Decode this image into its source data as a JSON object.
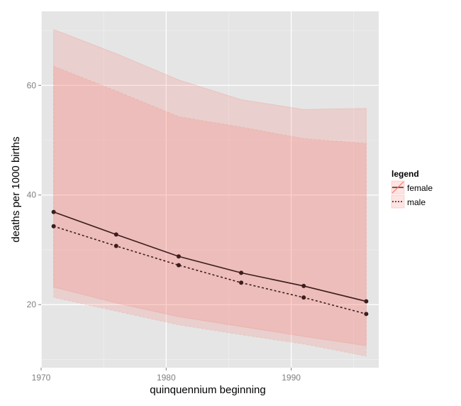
{
  "chart_data": {
    "type": "line",
    "xlabel": "quinquennium beginning",
    "ylabel": "deaths per 1000 births",
    "xlim": [
      1970,
      1997
    ],
    "ylim": [
      8.5,
      73.5
    ],
    "x_ticks": [
      1970,
      1980,
      1990
    ],
    "y_ticks": [
      20,
      40,
      60
    ],
    "grid": true,
    "legend": {
      "title": "legend",
      "position": "right"
    },
    "x": [
      1971,
      1976,
      1981,
      1986,
      1991,
      1996
    ],
    "series": [
      {
        "name": "female",
        "values": [
          36.9,
          32.8,
          28.8,
          25.8,
          23.4,
          20.6
        ],
        "lower": [
          23.2,
          20.3,
          17.8,
          16.0,
          14.2,
          12.5
        ],
        "upper": [
          70.2,
          65.8,
          61.0,
          57.4,
          55.6,
          55.8
        ],
        "line_style": "solid"
      },
      {
        "name": "male",
        "values": [
          34.3,
          30.7,
          27.2,
          24.0,
          21.3,
          18.3
        ],
        "lower": [
          21.3,
          18.8,
          16.3,
          14.5,
          12.8,
          10.6
        ],
        "upper": [
          63.5,
          59.0,
          54.3,
          52.4,
          50.3,
          49.4
        ],
        "line_style": "dashed"
      }
    ],
    "colors": {
      "panel_bg": "#e5e5e5",
      "grid_major": "#ffffff",
      "grid_minor": "#f2f2f2",
      "ribbon_fill": "#f8766d",
      "line": "#3d1d1d",
      "point": "#3d1d1d"
    }
  }
}
